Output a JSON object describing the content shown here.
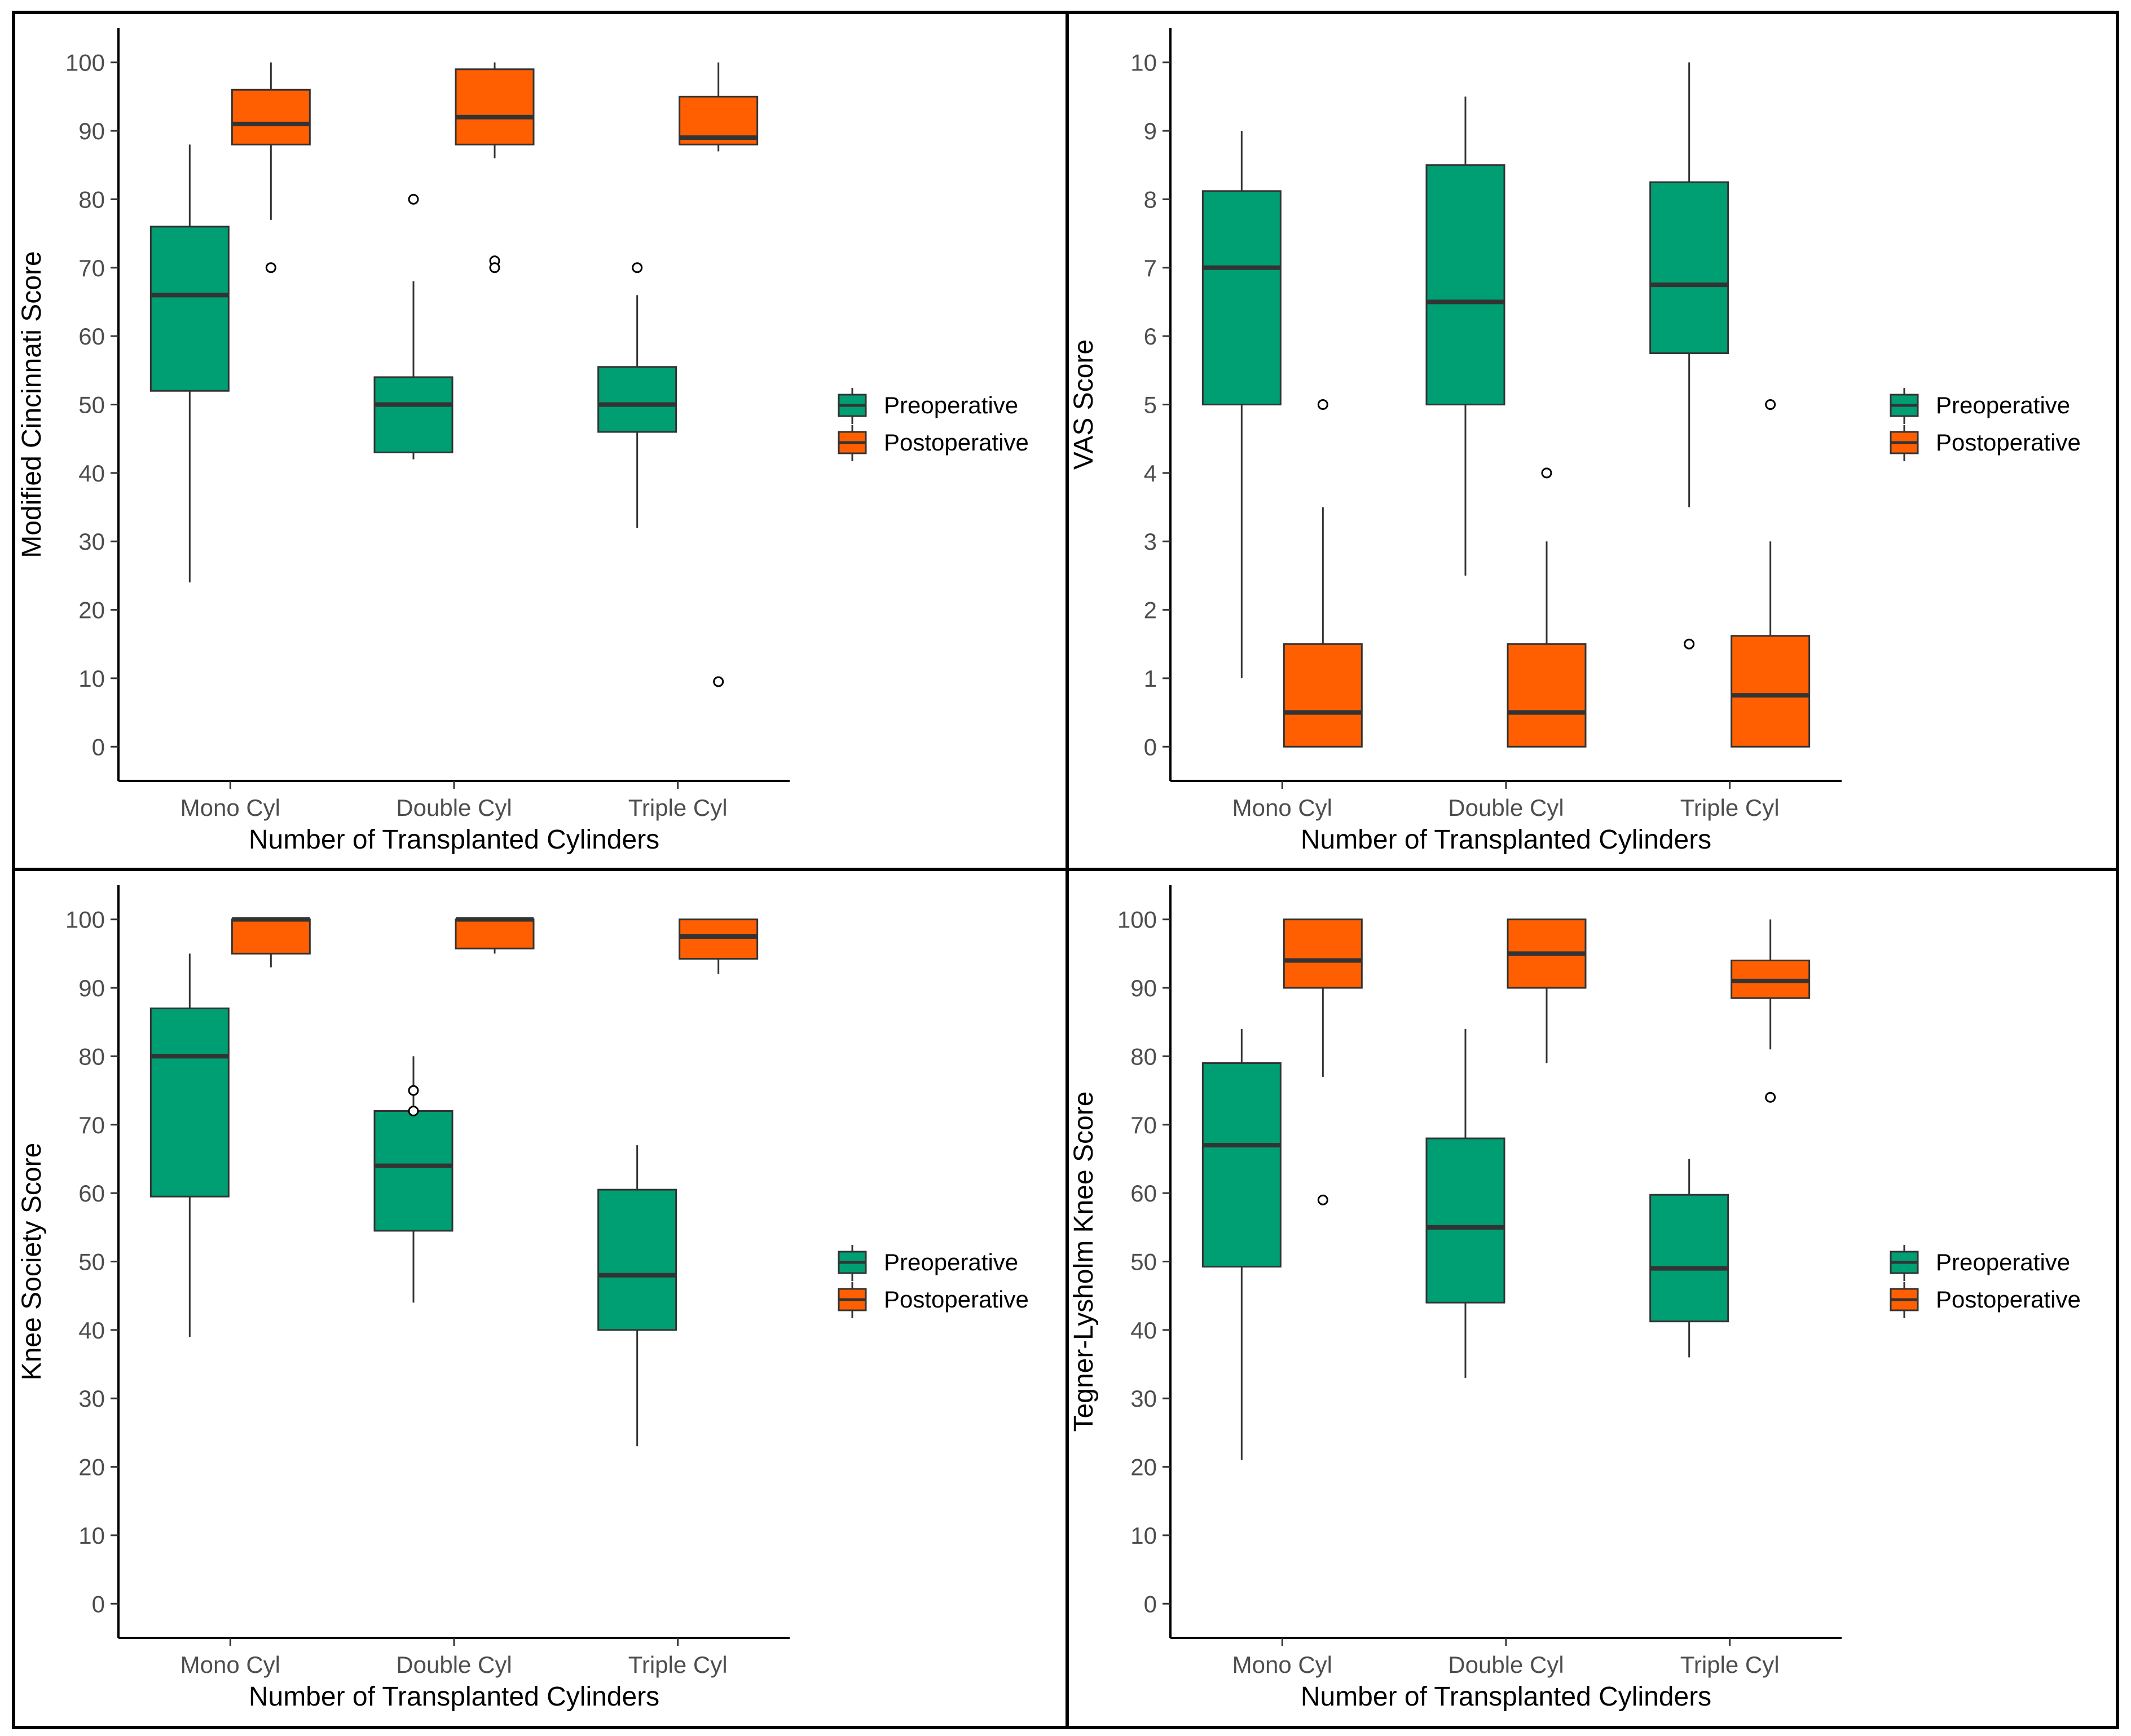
{
  "colors": {
    "preoperative": "#009E73",
    "postoperative": "#FF5F00",
    "line": "#333333",
    "panel_border": "#000000"
  },
  "legend": [
    "Preoperative",
    "Postoperative"
  ],
  "chart_data": [
    {
      "type": "boxplot",
      "position": "top-left",
      "xlabel": "Number of Transplanted Cylinders",
      "ylabel": "Modified Cincinnati Score",
      "categories": [
        "Mono Cyl",
        "Double Cyl",
        "Triple Cyl"
      ],
      "ylim": [
        -5,
        105
      ],
      "yticks": [
        0,
        10,
        20,
        30,
        40,
        50,
        60,
        70,
        80,
        90,
        100
      ],
      "series": [
        {
          "name": "Preoperative",
          "boxes": [
            {
              "low": 24,
              "q1": 52,
              "median": 66,
              "q3": 76,
              "high": 88,
              "outliers": []
            },
            {
              "low": 42,
              "q1": 43,
              "median": 50,
              "q3": 54,
              "high": 68,
              "outliers": [
                80
              ]
            },
            {
              "low": 32,
              "q1": 46,
              "median": 50,
              "q3": 55.5,
              "high": 66,
              "outliers": [
                70
              ]
            }
          ]
        },
        {
          "name": "Postoperative",
          "boxes": [
            {
              "low": 77,
              "q1": 88,
              "median": 91,
              "q3": 96,
              "high": 100,
              "outliers": [
                70
              ]
            },
            {
              "low": 86,
              "q1": 88,
              "median": 92,
              "q3": 99,
              "high": 100,
              "outliers": [
                71,
                70
              ]
            },
            {
              "low": 87,
              "q1": 88,
              "median": 89,
              "q3": 95,
              "high": 100,
              "outliers": [
                9.5
              ]
            }
          ]
        }
      ]
    },
    {
      "type": "boxplot",
      "position": "top-right",
      "xlabel": "Number of Transplanted Cylinders",
      "ylabel": "VAS Score",
      "categories": [
        "Mono Cyl",
        "Double Cyl",
        "Triple Cyl"
      ],
      "ylim": [
        -0.5,
        10.5
      ],
      "yticks": [
        0,
        1,
        2,
        3,
        4,
        5,
        6,
        7,
        8,
        9,
        10
      ],
      "series": [
        {
          "name": "Preoperative",
          "boxes": [
            {
              "low": 1,
              "q1": 5,
              "median": 7,
              "q3": 8.12,
              "high": 9,
              "outliers": []
            },
            {
              "low": 2.5,
              "q1": 5,
              "median": 6.5,
              "q3": 8.5,
              "high": 9.5,
              "outliers": []
            },
            {
              "low": 3.5,
              "q1": 5.75,
              "median": 6.75,
              "q3": 8.25,
              "high": 10,
              "outliers": [
                1.5
              ]
            }
          ]
        },
        {
          "name": "Postoperative",
          "boxes": [
            {
              "low": 0,
              "q1": 0,
              "median": 0.5,
              "q3": 1.5,
              "high": 3.5,
              "outliers": [
                5
              ]
            },
            {
              "low": 0,
              "q1": 0,
              "median": 0.5,
              "q3": 1.5,
              "high": 3,
              "outliers": [
                4
              ]
            },
            {
              "low": 0,
              "q1": 0,
              "median": 0.75,
              "q3": 1.62,
              "high": 3,
              "outliers": [
                5
              ]
            }
          ]
        }
      ]
    },
    {
      "type": "boxplot",
      "position": "bottom-left",
      "xlabel": "Number of Transplanted Cylinders",
      "ylabel": "Knee Society Score",
      "categories": [
        "Mono Cyl",
        "Double Cyl",
        "Triple Cyl"
      ],
      "ylim": [
        -5,
        105
      ],
      "yticks": [
        0,
        10,
        20,
        30,
        40,
        50,
        60,
        70,
        80,
        90,
        100
      ],
      "series": [
        {
          "name": "Preoperative",
          "boxes": [
            {
              "low": 39,
              "q1": 59.5,
              "median": 80,
              "q3": 87,
              "high": 95,
              "outliers": []
            },
            {
              "low": 44,
              "q1": 54.5,
              "median": 64,
              "q3": 72,
              "high": 80,
              "outliers": [
                75,
                72
              ]
            },
            {
              "low": 23,
              "q1": 40,
              "median": 48,
              "q3": 60.5,
              "high": 67,
              "outliers": []
            }
          ]
        },
        {
          "name": "Postoperative",
          "boxes": [
            {
              "low": 93,
              "q1": 95,
              "median": 100,
              "q3": 100,
              "high": 100,
              "outliers": []
            },
            {
              "low": 95,
              "q1": 95.75,
              "median": 100,
              "q3": 100,
              "high": 100,
              "outliers": []
            },
            {
              "low": 92,
              "q1": 94.25,
              "median": 97.5,
              "q3": 100,
              "high": 100,
              "outliers": []
            }
          ]
        }
      ]
    },
    {
      "type": "boxplot",
      "position": "bottom-right",
      "xlabel": "Number of Transplanted Cylinders",
      "ylabel": "Tegner-Lysholm Knee Score",
      "categories": [
        "Mono Cyl",
        "Double Cyl",
        "Triple Cyl"
      ],
      "ylim": [
        -5,
        105
      ],
      "yticks": [
        0,
        10,
        20,
        30,
        40,
        50,
        60,
        70,
        80,
        90,
        100
      ],
      "series": [
        {
          "name": "Preoperative",
          "boxes": [
            {
              "low": 21,
              "q1": 49.25,
              "median": 67,
              "q3": 79,
              "high": 84,
              "outliers": []
            },
            {
              "low": 33,
              "q1": 44,
              "median": 55,
              "q3": 68,
              "high": 84,
              "outliers": []
            },
            {
              "low": 36,
              "q1": 41.25,
              "median": 49,
              "q3": 59.75,
              "high": 65,
              "outliers": []
            }
          ]
        },
        {
          "name": "Postoperative",
          "boxes": [
            {
              "low": 77,
              "q1": 90,
              "median": 94,
              "q3": 100,
              "high": 100,
              "outliers": [
                59
              ]
            },
            {
              "low": 79,
              "q1": 90,
              "median": 95,
              "q3": 100,
              "high": 100,
              "outliers": []
            },
            {
              "low": 81,
              "q1": 88.5,
              "median": 91,
              "q3": 94,
              "high": 100,
              "outliers": [
                74
              ]
            }
          ]
        }
      ]
    }
  ]
}
